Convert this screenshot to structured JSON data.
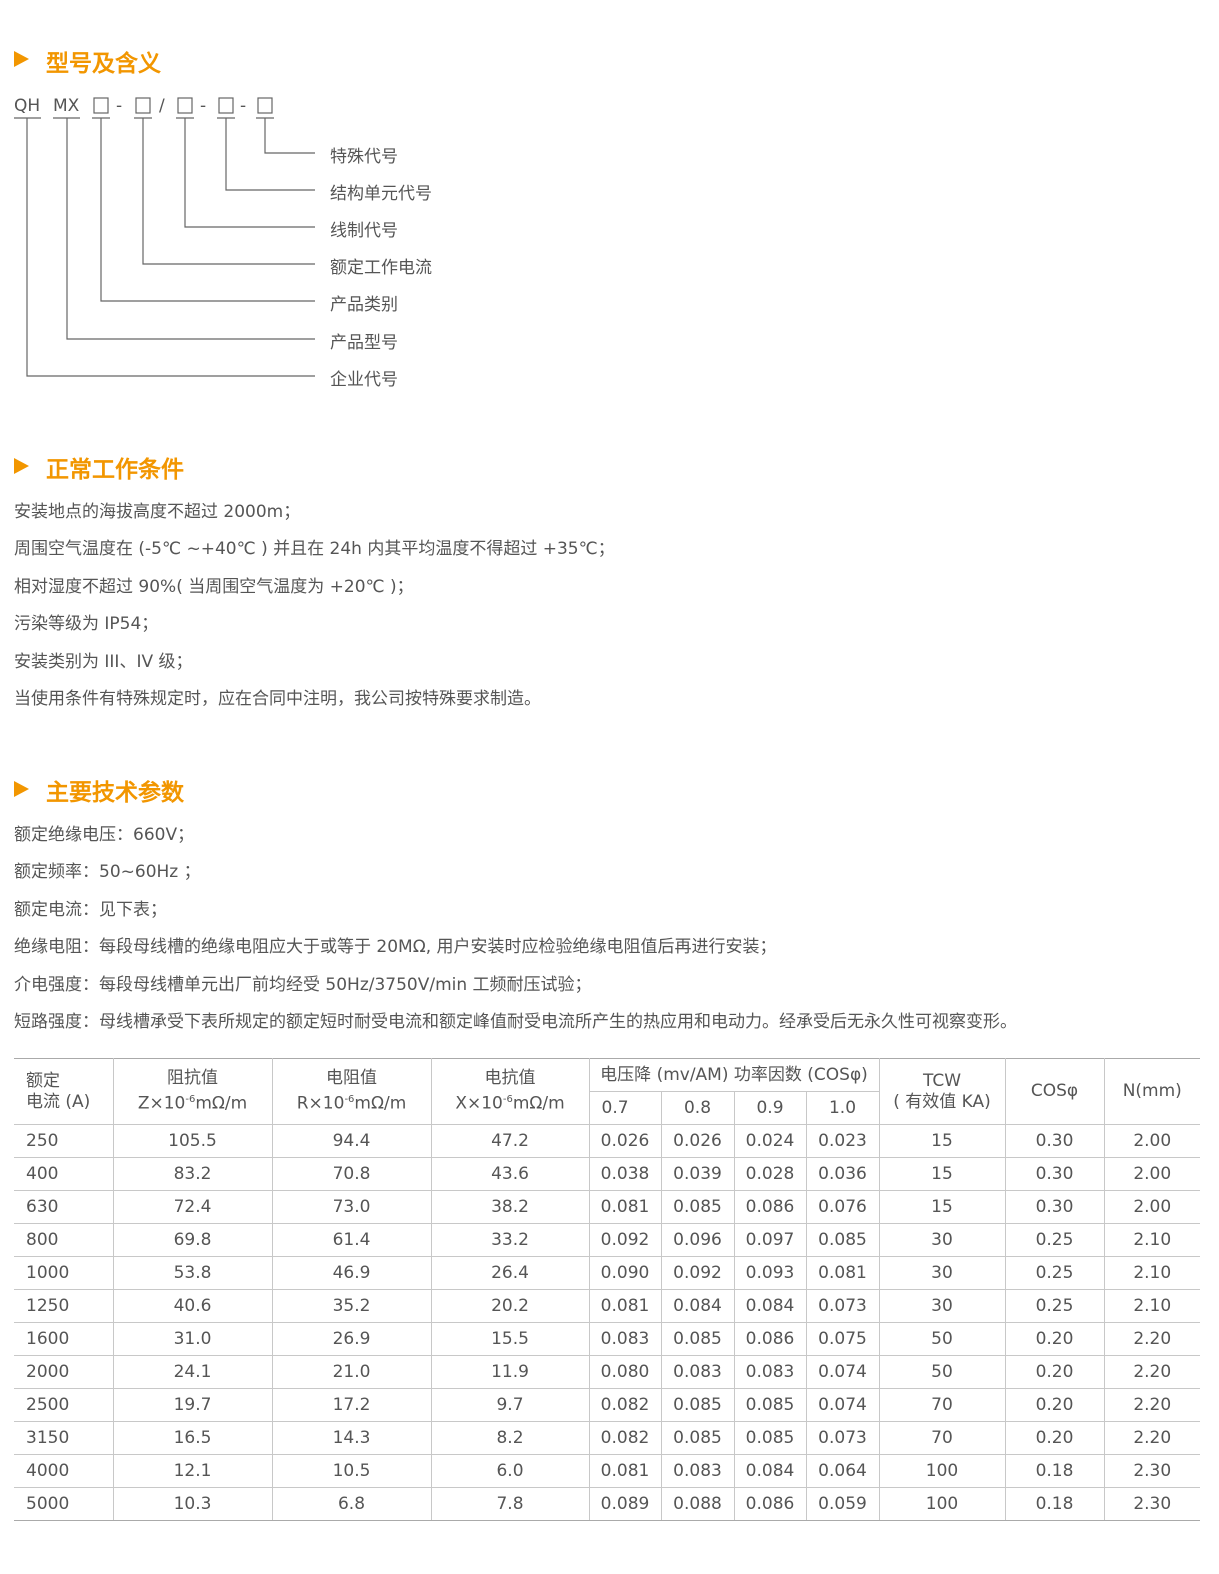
{
  "sections": [
    {
      "title": "型号及含义",
      "code": [
        "QH",
        "MX",
        "-",
        "/",
        "-",
        "-"
      ],
      "labels": [
        "特殊代号",
        "结构单元代号",
        "线制代号",
        "额定工作电流",
        "产品类别",
        "产品型号",
        "企业代号"
      ]
    },
    {
      "title": "正常工作条件",
      "lines": [
        "安装地点的海拔高度不超过 2000m；",
        "周围空气温度在 (-5℃ ~+40℃ ) 并且在 24h 内其平均温度不得超过 +35℃；",
        "相对湿度不超过 90%( 当周围空气温度为 +20℃ )；",
        "污染等级为 IP54；",
        "安装类别为 III、IV 级；",
        "当使用条件有特殊规定时，应在合同中注明，我公司按特殊要求制造。"
      ]
    },
    {
      "title": "主要技术参数",
      "lines": [
        "额定绝缘电压：660V；",
        "额定频率：50~60Hz ；",
        "额定电流：见下表；",
        "绝缘电阻：每段母线槽的绝缘电阻应大于或等于 20MΩ, 用户安装时应检验绝缘电阻值后再进行安装；",
        "介电强度：每段母线槽单元出厂前均经受 50Hz/3750V/min 工频耐压试验；",
        "短路强度：母线槽承受下表所规定的额定短时耐受电流和额定峰值耐受电流所产生的热应用和电动力。经承受后无永久性可视察变形。"
      ]
    }
  ],
  "table": {
    "header": {
      "current": [
        "额定",
        "电流 (A)"
      ],
      "impedance": {
        "name": "阻抗值",
        "pre": "Z×10",
        "sup": "-6",
        "post": "mΩ/m"
      },
      "resistance": {
        "name": "电阻值",
        "pre": "R×10",
        "sup": "-6",
        "post": "mΩ/m"
      },
      "reactance": {
        "name": "电抗值",
        "pre": "X×10",
        "sup": "-6",
        "post": "mΩ/m"
      },
      "drop": "电压降 (mv/AM) 功率因数 (COSφ)",
      "factors": [
        "0.7",
        "0.8",
        "0.9",
        "1.0"
      ],
      "tcw": [
        "TCW",
        "( 有效值 KA)"
      ],
      "cos": "COSφ",
      "n": "N(mm)"
    },
    "rows": [
      [
        "250",
        "105.5",
        "94.4",
        "47.2",
        "0.026",
        "0.026",
        "0.024",
        "0.023",
        "15",
        "0.30",
        "2.00"
      ],
      [
        "400",
        "83.2",
        "70.8",
        "43.6",
        "0.038",
        "0.039",
        "0.028",
        "0.036",
        "15",
        "0.30",
        "2.00"
      ],
      [
        "630",
        "72.4",
        "73.0",
        "38.2",
        "0.081",
        "0.085",
        "0.086",
        "0.076",
        "15",
        "0.30",
        "2.00"
      ],
      [
        "800",
        "69.8",
        "61.4",
        "33.2",
        "0.092",
        "0.096",
        "0.097",
        "0.085",
        "30",
        "0.25",
        "2.10"
      ],
      [
        "1000",
        "53.8",
        "46.9",
        "26.4",
        "0.090",
        "0.092",
        "0.093",
        "0.081",
        "30",
        "0.25",
        "2.10"
      ],
      [
        "1250",
        "40.6",
        "35.2",
        "20.2",
        "0.081",
        "0.084",
        "0.084",
        "0.073",
        "30",
        "0.25",
        "2.10"
      ],
      [
        "1600",
        "31.0",
        "26.9",
        "15.5",
        "0.083",
        "0.085",
        "0.086",
        "0.075",
        "50",
        "0.20",
        "2.20"
      ],
      [
        "2000",
        "24.1",
        "21.0",
        "11.9",
        "0.080",
        "0.083",
        "0.083",
        "0.074",
        "50",
        "0.20",
        "2.20"
      ],
      [
        "2500",
        "19.7",
        "17.2",
        "9.7",
        "0.082",
        "0.085",
        "0.085",
        "0.074",
        "70",
        "0.20",
        "2.20"
      ],
      [
        "3150",
        "16.5",
        "14.3",
        "8.2",
        "0.082",
        "0.085",
        "0.085",
        "0.073",
        "70",
        "0.20",
        "2.20"
      ],
      [
        "4000",
        "12.1",
        "10.5",
        "6.0",
        "0.081",
        "0.083",
        "0.084",
        "0.064",
        "100",
        "0.18",
        "2.30"
      ],
      [
        "5000",
        "10.3",
        "6.8",
        "7.8",
        "0.089",
        "0.088",
        "0.086",
        "0.059",
        "100",
        "0.18",
        "2.30"
      ]
    ]
  }
}
